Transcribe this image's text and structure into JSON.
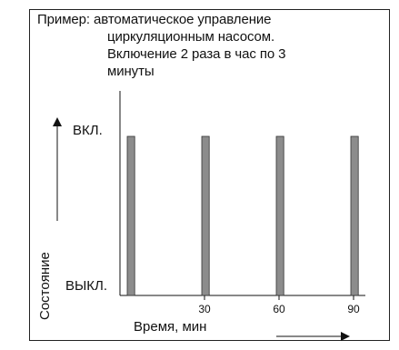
{
  "title_lines": [
    "Пример: автоматическое управление",
    "циркуляционным насосом.",
    "Включение 2 раза в час по 3",
    "минуты"
  ],
  "chart_data": {
    "type": "bar",
    "xlabel": "Время, мин",
    "ylabel": "Состояние",
    "y_states": [
      "ВЫКЛ.",
      "ВКЛ."
    ],
    "x_ticks": [
      30,
      60,
      90
    ],
    "xlim": [
      -8,
      102
    ],
    "pulses": [
      {
        "start": 0,
        "duration": 3,
        "state": "ВКЛ."
      },
      {
        "start": 30,
        "duration": 3,
        "state": "ВКЛ."
      },
      {
        "start": 60,
        "duration": 3,
        "state": "ВКЛ."
      },
      {
        "start": 90,
        "duration": 3,
        "state": "ВКЛ."
      }
    ],
    "bar_color": "#8c8c8c",
    "grid": false
  }
}
